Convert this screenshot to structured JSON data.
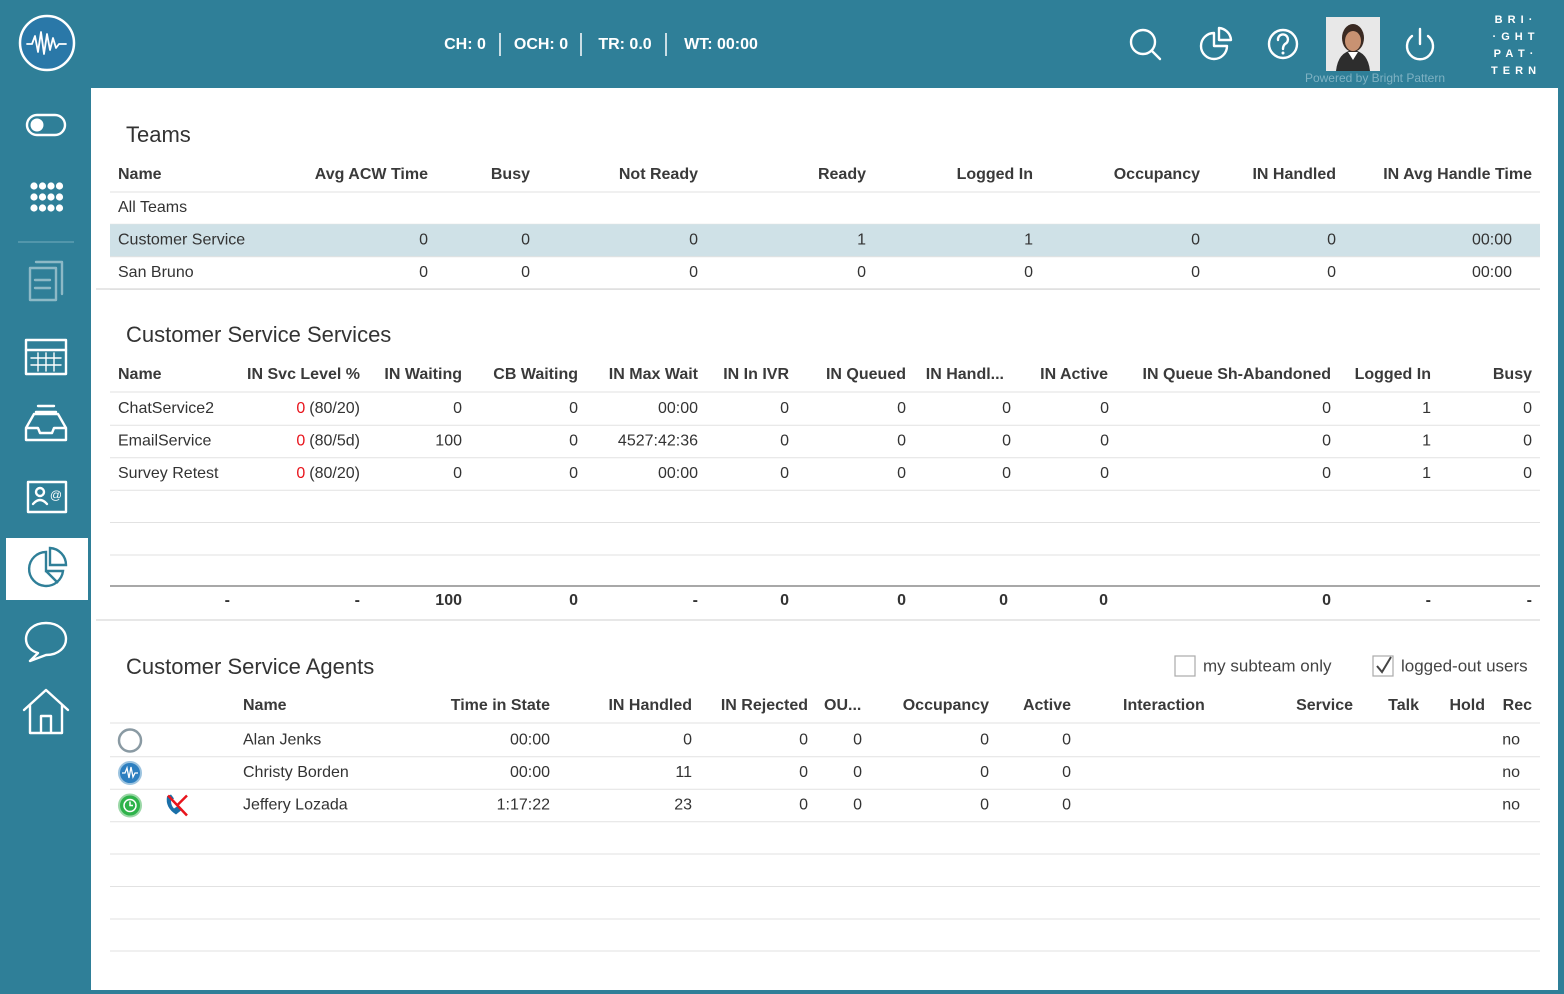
{
  "header": {
    "stats": [
      "CH: 0",
      "OCH: 0",
      "TR: 0.0",
      "WT: 00:00"
    ],
    "powered": "Powered by Bright Pattern",
    "logo": [
      "B R I ·",
      "· G H T",
      "P A T ·",
      "T E R N"
    ]
  },
  "teams": {
    "title": "Teams",
    "columns": [
      "Name",
      "Avg ACW Time",
      "Busy",
      "Not Ready",
      "Ready",
      "Logged In",
      "Occupancy",
      "IN Handled",
      "IN Avg Handle Time"
    ],
    "rows": [
      {
        "cells": [
          "All Teams"
        ],
        "red": []
      },
      {
        "cells": [
          "Customer Service",
          "0",
          "0",
          "0",
          "1",
          "1",
          "0",
          "0",
          "00:00"
        ],
        "red": [
          4
        ],
        "selected": true
      },
      {
        "cells": [
          "San Bruno",
          "0",
          "0",
          "0",
          "0",
          "0",
          "0",
          "0",
          "00:00"
        ],
        "red": [
          4,
          5
        ]
      }
    ]
  },
  "services": {
    "title": "Customer Service Services",
    "columns": [
      "Name",
      "IN Svc Level %",
      "IN Waiting",
      "CB Waiting",
      "IN Max Wait",
      "IN In IVR",
      "IN Queued",
      "IN Handl...",
      "IN Active",
      "IN Queue Sh-Abandoned",
      "Logged In",
      "Busy"
    ],
    "rows": [
      {
        "cells": [
          "ChatService2",
          [
            "0",
            "(80/20)"
          ],
          "0",
          "0",
          "00:00",
          "0",
          "0",
          "0",
          "0",
          "0",
          "1",
          "0"
        ],
        "red": [
          1
        ]
      },
      {
        "cells": [
          "EmailService",
          [
            "0",
            "(80/5d)"
          ],
          "100",
          "0",
          "4527:42:36",
          "0",
          "0",
          "0",
          "0",
          "0",
          "1",
          "0"
        ],
        "red": [
          1,
          4
        ]
      },
      {
        "cells": [
          "Survey Retest",
          [
            "0",
            "(80/20)"
          ],
          "0",
          "0",
          "00:00",
          "0",
          "0",
          "0",
          "0",
          "0",
          "1",
          "0"
        ],
        "red": [
          1
        ]
      }
    ],
    "totals": [
      "-",
      "-",
      "100",
      "0",
      "-",
      "0",
      "0",
      "0",
      "0",
      "0",
      "-",
      "-"
    ]
  },
  "agents": {
    "title": "Customer Service Agents",
    "options": [
      {
        "label": "my subteam only",
        "checked": false
      },
      {
        "label": "logged-out users",
        "checked": true
      }
    ],
    "columns": [
      "Name",
      "Time in State",
      "IN Handled",
      "IN Rejected",
      "OU...",
      "Occupancy",
      "Active",
      "Interaction",
      "Service",
      "Talk",
      "Hold",
      "Rec"
    ],
    "rows": [
      {
        "status": "offline",
        "phone_off": false,
        "cells": [
          "Alan Jenks",
          "00:00",
          "0",
          "0",
          "0",
          "0",
          "0",
          null,
          null,
          null,
          null,
          "no"
        ],
        "red": [
          5
        ]
      },
      {
        "status": "busy",
        "phone_off": false,
        "cells": [
          "Christy Borden",
          "00:00",
          "11",
          "0",
          "0",
          "0",
          "0",
          null,
          null,
          null,
          null,
          "no"
        ],
        "red": [
          5
        ]
      },
      {
        "status": "ready",
        "phone_off": true,
        "cells": [
          "Jeffery Lozada",
          "1:17:22",
          "23",
          "0",
          "0",
          "0",
          "0",
          null,
          null,
          null,
          null,
          "no"
        ],
        "red": [
          1,
          5
        ]
      }
    ]
  }
}
